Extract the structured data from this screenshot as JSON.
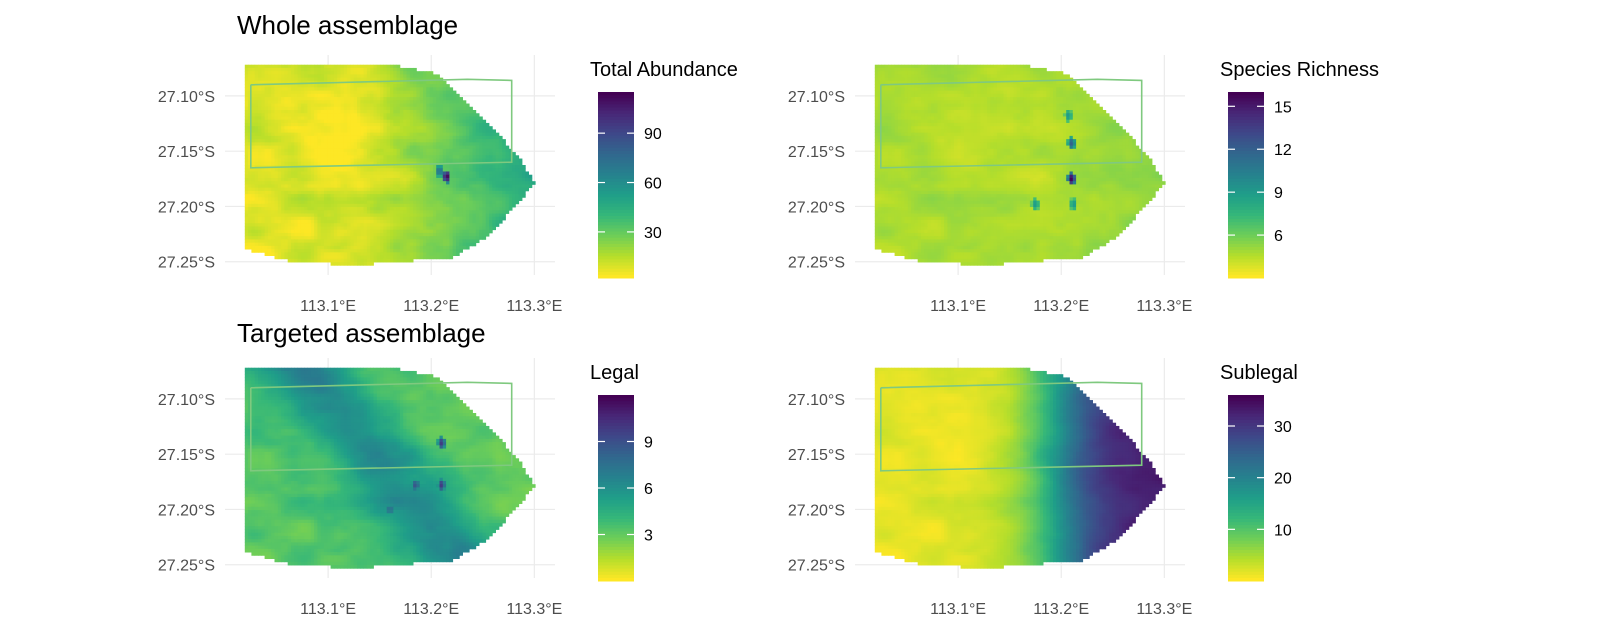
{
  "sections": [
    {
      "title": "Whole assemblage"
    },
    {
      "title": "Targeted assemblage"
    }
  ],
  "colors": {
    "viridis": [
      "#fde725",
      "#b5de2b",
      "#6ece58",
      "#35b779",
      "#1f9e89",
      "#26828e",
      "#31688e",
      "#3e4989",
      "#482878",
      "#440154"
    ],
    "outline": "#7fc97f",
    "grid": "#ebebeb",
    "tick_text": "#4d4d4d"
  },
  "chart_data": [
    {
      "type": "heatmap",
      "section": 0,
      "legend_title": "Total Abundance",
      "legend_ticks": [
        30,
        60,
        90
      ],
      "value_range": [
        2,
        115
      ],
      "pattern": "east_gradient",
      "hotspots": [
        {
          "lon": 113.215,
          "lat": -27.173,
          "value": 115
        },
        {
          "lon": 113.208,
          "lat": -27.168,
          "value": 75
        }
      ],
      "x_ticks": [
        113.1,
        113.2,
        113.3
      ],
      "x_tick_labels": [
        "113.1°E",
        "113.2°E",
        "113.3°E"
      ],
      "y_ticks": [
        -27.1,
        -27.15,
        -27.2,
        -27.25
      ],
      "y_tick_labels": [
        "27.10°S",
        "27.15°S",
        "27.20°S",
        "27.25°S"
      ],
      "xlim": [
        113.0,
        113.32
      ],
      "ylim": [
        -27.262,
        -27.063
      ]
    },
    {
      "type": "heatmap",
      "section": 0,
      "legend_title": "Species Richness",
      "legend_ticks": [
        6,
        9,
        12,
        15
      ],
      "value_range": [
        3,
        16
      ],
      "pattern": "mild",
      "hotspots": [
        {
          "lon": 113.21,
          "lat": -27.175,
          "value": 16
        },
        {
          "lon": 113.21,
          "lat": -27.143,
          "value": 12
        },
        {
          "lon": 113.207,
          "lat": -27.118,
          "value": 9
        },
        {
          "lon": 113.212,
          "lat": -27.198,
          "value": 9
        },
        {
          "lon": 113.175,
          "lat": -27.198,
          "value": 9
        }
      ],
      "x_ticks": [
        113.1,
        113.2,
        113.3
      ],
      "x_tick_labels": [
        "113.1°E",
        "113.2°E",
        "113.3°E"
      ],
      "y_ticks": [
        -27.1,
        -27.15,
        -27.2,
        -27.25
      ],
      "y_tick_labels": [
        "27.10°S",
        "27.15°S",
        "27.20°S",
        "27.25°S"
      ],
      "xlim": [
        113.0,
        113.32
      ],
      "ylim": [
        -27.262,
        -27.063
      ]
    },
    {
      "type": "heatmap",
      "section": 1,
      "legend_title": "Legal",
      "legend_ticks": [
        3,
        6,
        9
      ],
      "value_range": [
        0,
        12
      ],
      "pattern": "diagonal_band",
      "hotspots": [
        {
          "lon": 113.21,
          "lat": -27.14,
          "value": 10
        },
        {
          "lon": 113.21,
          "lat": -27.178,
          "value": 10
        },
        {
          "lon": 113.185,
          "lat": -27.178,
          "value": 9
        },
        {
          "lon": 113.16,
          "lat": -27.2,
          "value": 8
        }
      ],
      "x_ticks": [
        113.1,
        113.2,
        113.3
      ],
      "x_tick_labels": [
        "113.1°E",
        "113.2°E",
        "113.3°E"
      ],
      "y_ticks": [
        -27.1,
        -27.15,
        -27.2,
        -27.25
      ],
      "y_tick_labels": [
        "27.10°S",
        "27.15°S",
        "27.20°S",
        "27.25°S"
      ],
      "xlim": [
        113.0,
        113.32
      ],
      "ylim": [
        -27.262,
        -27.063
      ]
    },
    {
      "type": "heatmap",
      "section": 1,
      "legend_title": "Sublegal",
      "legend_ticks": [
        10,
        20,
        30
      ],
      "value_range": [
        0,
        36
      ],
      "pattern": "east_strong",
      "hotspots": [],
      "x_ticks": [
        113.1,
        113.2,
        113.3
      ],
      "x_tick_labels": [
        "113.1°E",
        "113.2°E",
        "113.3°E"
      ],
      "y_ticks": [
        -27.1,
        -27.15,
        -27.2,
        -27.25
      ],
      "y_tick_labels": [
        "27.10°S",
        "27.15°S",
        "27.20°S",
        "27.25°S"
      ],
      "xlim": [
        113.0,
        113.32
      ],
      "ylim": [
        -27.262,
        -27.063
      ]
    }
  ]
}
